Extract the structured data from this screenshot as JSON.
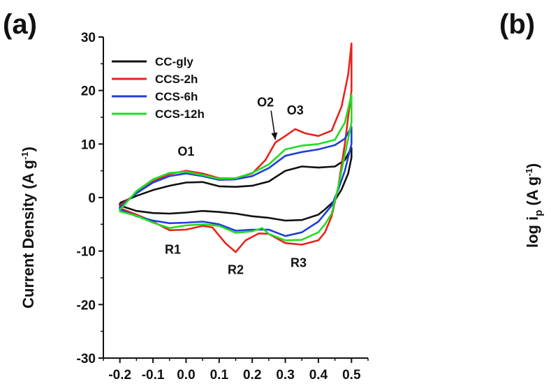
{
  "panel_a_label": "(a)",
  "panel_b_label": "(b)",
  "panel_b_ylabel": "log i",
  "panel_b_ylabel_sub": "p",
  "panel_b_ylabel_unit": "(A g",
  "panel_b_ylabel_sup": "-1",
  "panel_b_ylabel_close": ")",
  "colors": {
    "CC-gly": "#111111",
    "CCS-2h": "#e8231d",
    "CCS-6h": "#1f40d8",
    "CCS-12h": "#22dd22"
  },
  "chart_data": {
    "type": "line",
    "title": "",
    "xlabel": "",
    "ylabel_main": "Current Density (A g",
    "ylabel_sup": "-1",
    "ylabel_close": ")",
    "xlim": [
      -0.25,
      0.55
    ],
    "ylim": [
      -30,
      30
    ],
    "xticks": [
      -0.2,
      -0.1,
      0.0,
      0.1,
      0.2,
      0.3,
      0.4,
      0.5
    ],
    "xtick_labels": [
      "-0.2",
      "-0.1",
      "0.0",
      "0.1",
      "0.2",
      "0.3",
      "0.4",
      "0.5"
    ],
    "yticks": [
      -30,
      -20,
      -10,
      0,
      10,
      20,
      30
    ],
    "ytick_labels": [
      "-30",
      "-20",
      "-10",
      "0",
      "10",
      "20",
      "30"
    ],
    "legend_position": "top-left",
    "series": [
      {
        "name": "CC-gly",
        "x": [
          -0.2,
          -0.15,
          -0.1,
          -0.05,
          0.0,
          0.05,
          0.1,
          0.15,
          0.2,
          0.25,
          0.3,
          0.35,
          0.4,
          0.45,
          0.48,
          0.5,
          0.5,
          0.49,
          0.47,
          0.45,
          0.42,
          0.4,
          0.35,
          0.3,
          0.25,
          0.2,
          0.15,
          0.1,
          0.05,
          0.0,
          -0.05,
          -0.1,
          -0.15,
          -0.2
        ],
        "y": [
          -1.0,
          0.3,
          1.4,
          2.2,
          2.8,
          2.9,
          2.1,
          2.0,
          2.2,
          3.0,
          5.0,
          5.8,
          5.6,
          5.8,
          7.0,
          9.3,
          7.5,
          4.5,
          1.5,
          -0.5,
          -2.2,
          -3.2,
          -4.2,
          -4.3,
          -3.8,
          -3.5,
          -3.0,
          -2.7,
          -2.5,
          -2.8,
          -3.0,
          -2.9,
          -2.5,
          -1.5
        ]
      },
      {
        "name": "CCS-2h",
        "x": [
          -0.2,
          -0.15,
          -0.1,
          -0.05,
          0.0,
          0.05,
          0.1,
          0.15,
          0.2,
          0.24,
          0.27,
          0.3,
          0.33,
          0.36,
          0.4,
          0.44,
          0.47,
          0.49,
          0.5,
          0.5,
          0.48,
          0.46,
          0.44,
          0.42,
          0.4,
          0.35,
          0.3,
          0.25,
          0.22,
          0.18,
          0.15,
          0.12,
          0.08,
          0.05,
          0.0,
          -0.05,
          -0.1,
          -0.15,
          -0.2
        ],
        "y": [
          -1.5,
          0.8,
          3.0,
          4.4,
          5.0,
          4.5,
          3.6,
          3.6,
          4.5,
          7.0,
          10.3,
          11.5,
          12.8,
          12.0,
          11.5,
          12.5,
          17.0,
          23.0,
          28.8,
          20.0,
          10.0,
          2.0,
          -3.5,
          -6.5,
          -8.0,
          -8.8,
          -8.5,
          -6.8,
          -6.7,
          -8.0,
          -10.2,
          -8.6,
          -5.6,
          -5.3,
          -6.0,
          -6.1,
          -4.5,
          -3.2,
          -2.0
        ]
      },
      {
        "name": "CCS-6h",
        "x": [
          -0.2,
          -0.15,
          -0.1,
          -0.05,
          0.0,
          0.05,
          0.1,
          0.15,
          0.2,
          0.25,
          0.3,
          0.35,
          0.4,
          0.45,
          0.48,
          0.5,
          0.5,
          0.48,
          0.46,
          0.44,
          0.42,
          0.4,
          0.35,
          0.3,
          0.25,
          0.2,
          0.15,
          0.1,
          0.05,
          0.0,
          -0.05,
          -0.1,
          -0.15,
          -0.2
        ],
        "y": [
          -1.8,
          0.8,
          2.8,
          4.0,
          4.5,
          4.0,
          3.3,
          3.4,
          4.0,
          5.5,
          7.8,
          8.5,
          9.0,
          9.8,
          11.0,
          13.2,
          10.0,
          5.0,
          1.5,
          -1.5,
          -3.0,
          -4.5,
          -6.5,
          -7.2,
          -6.0,
          -6.0,
          -6.2,
          -5.0,
          -4.5,
          -4.7,
          -4.8,
          -4.3,
          -3.5,
          -2.2
        ]
      },
      {
        "name": "CCS-12h",
        "x": [
          -0.2,
          -0.15,
          -0.1,
          -0.05,
          0.0,
          0.05,
          0.1,
          0.15,
          0.2,
          0.25,
          0.3,
          0.35,
          0.4,
          0.45,
          0.48,
          0.5,
          0.5,
          0.48,
          0.46,
          0.44,
          0.42,
          0.4,
          0.35,
          0.3,
          0.25,
          0.23,
          0.2,
          0.15,
          0.1,
          0.05,
          0.0,
          -0.05,
          -0.1,
          -0.15,
          -0.2
        ],
        "y": [
          -2.3,
          1.2,
          3.4,
          4.6,
          4.8,
          4.2,
          3.5,
          3.6,
          4.6,
          6.2,
          9.0,
          9.7,
          10.0,
          10.8,
          14.0,
          19.2,
          14.0,
          8.0,
          2.0,
          -3.0,
          -5.0,
          -6.5,
          -7.9,
          -8.0,
          -6.8,
          -5.7,
          -6.3,
          -6.6,
          -5.3,
          -5.0,
          -5.2,
          -5.7,
          -4.7,
          -3.4,
          -2.6
        ]
      }
    ],
    "annotations": {
      "O1": {
        "label": "O1",
        "x": 0.0,
        "y": 7.8
      },
      "O2": {
        "label": "O2",
        "x": 0.24,
        "y": 17.0,
        "arrow_to_x": 0.27,
        "arrow_to_y": 10.8
      },
      "O3": {
        "label": "O3",
        "x": 0.33,
        "y": 15.5
      },
      "R1": {
        "label": "R1",
        "x": -0.04,
        "y": -10.5
      },
      "R2": {
        "label": "R2",
        "x": 0.15,
        "y": -14.3
      },
      "R3": {
        "label": "R3",
        "x": 0.34,
        "y": -13.0
      }
    }
  }
}
